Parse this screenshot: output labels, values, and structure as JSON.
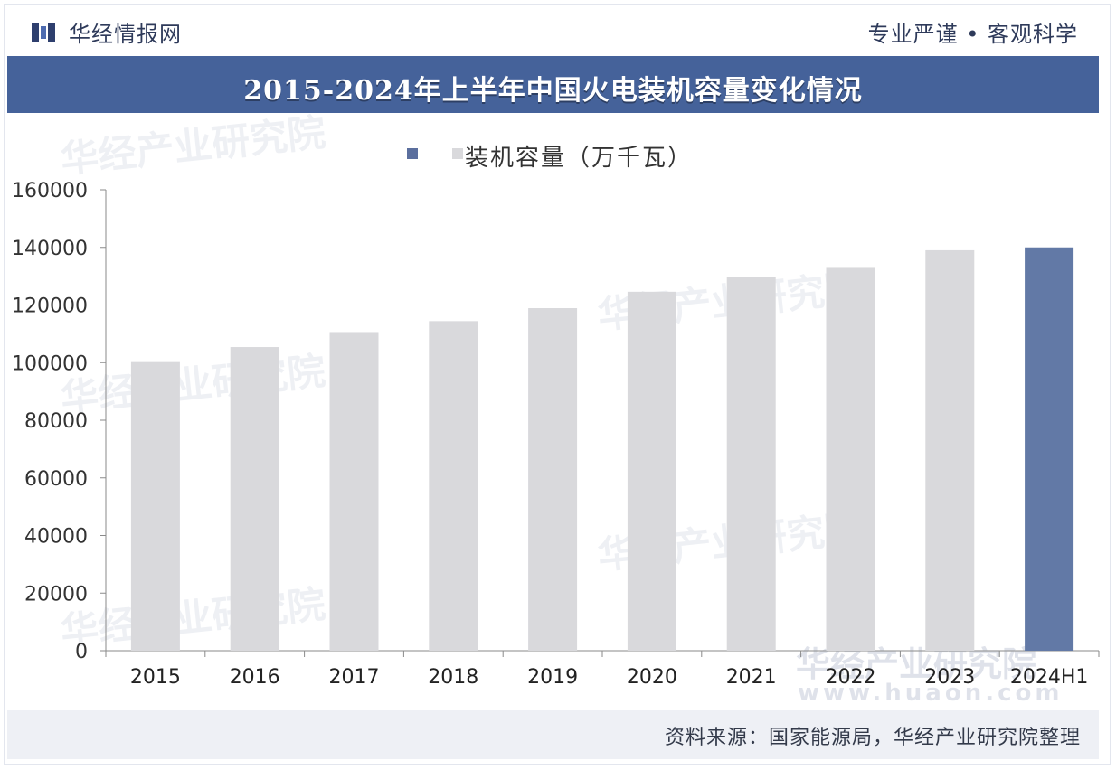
{
  "brand": {
    "name": "华经情报网",
    "motto": "专业严谨 • 客观科学"
  },
  "title": "2015-2024年上半年中国火电装机容量变化情况",
  "legend": {
    "label": "装机容量（万千瓦）"
  },
  "source": "资料来源：国家能源局，华经产业研究院整理",
  "watermark": {
    "text": "华经产业研究院",
    "url": "www.huaon.com"
  },
  "colors": {
    "banner": "#45629a",
    "bar": "#d9d9dc",
    "highlight": "#6279a6",
    "legend_dark": "#5b6f9e",
    "legend_light": "#d9d9dc"
  },
  "chart_data": {
    "type": "bar",
    "categories": [
      "2015",
      "2016",
      "2017",
      "2018",
      "2019",
      "2020",
      "2021",
      "2022",
      "2023",
      "2024H1"
    ],
    "series": [
      {
        "name": "装机容量（万千瓦）",
        "values": [
          100500,
          105400,
          110600,
          114400,
          118900,
          124600,
          129700,
          133200,
          139000,
          140000
        ]
      }
    ],
    "highlight_category": "2024H1",
    "ylim": [
      0,
      160000
    ],
    "yticks": [
      0,
      20000,
      40000,
      60000,
      80000,
      100000,
      120000,
      140000,
      160000
    ],
    "grid": false,
    "legend_position": "top"
  }
}
